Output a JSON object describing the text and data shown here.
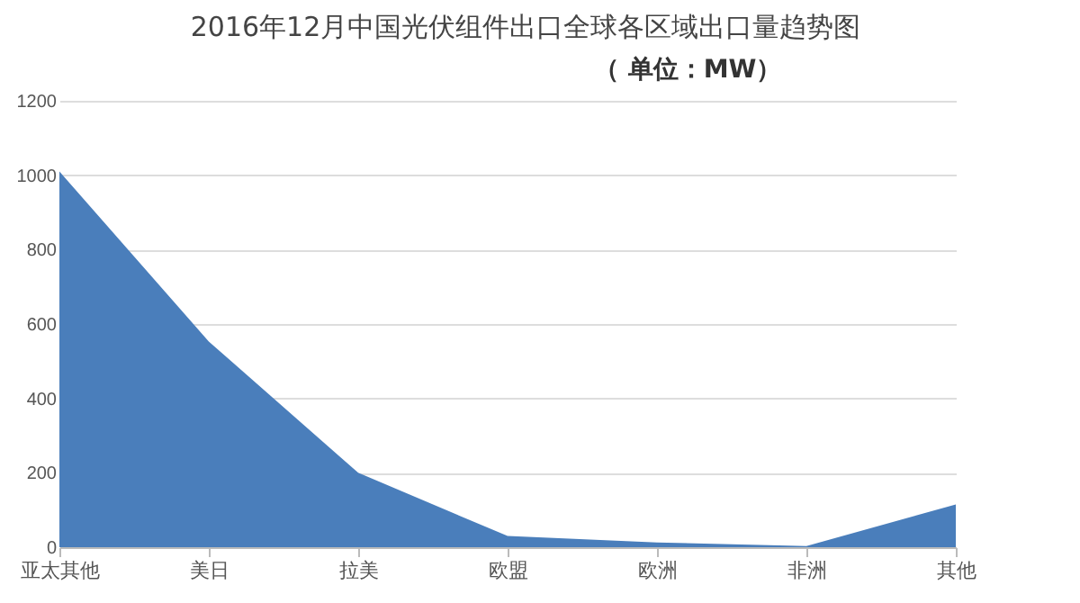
{
  "chart_data": {
    "type": "area",
    "title": "2016年12月中国光伏组件出口全球各区域出口量趋势图",
    "subtitle": "（ 单位：MW）",
    "categories": [
      "亚太其他",
      "美日",
      "拉美",
      "欧盟",
      "欧洲",
      "非洲",
      "其他"
    ],
    "series": [
      {
        "color": "#4a7ebb",
        "values": [
          1010,
          553,
          200,
          30,
          13,
          3,
          115
        ]
      }
    ],
    "ylim": [
      0,
      1200
    ],
    "yticks": [
      0,
      200,
      400,
      600,
      800,
      1000,
      1200
    ],
    "grid": "y",
    "legend": false
  }
}
